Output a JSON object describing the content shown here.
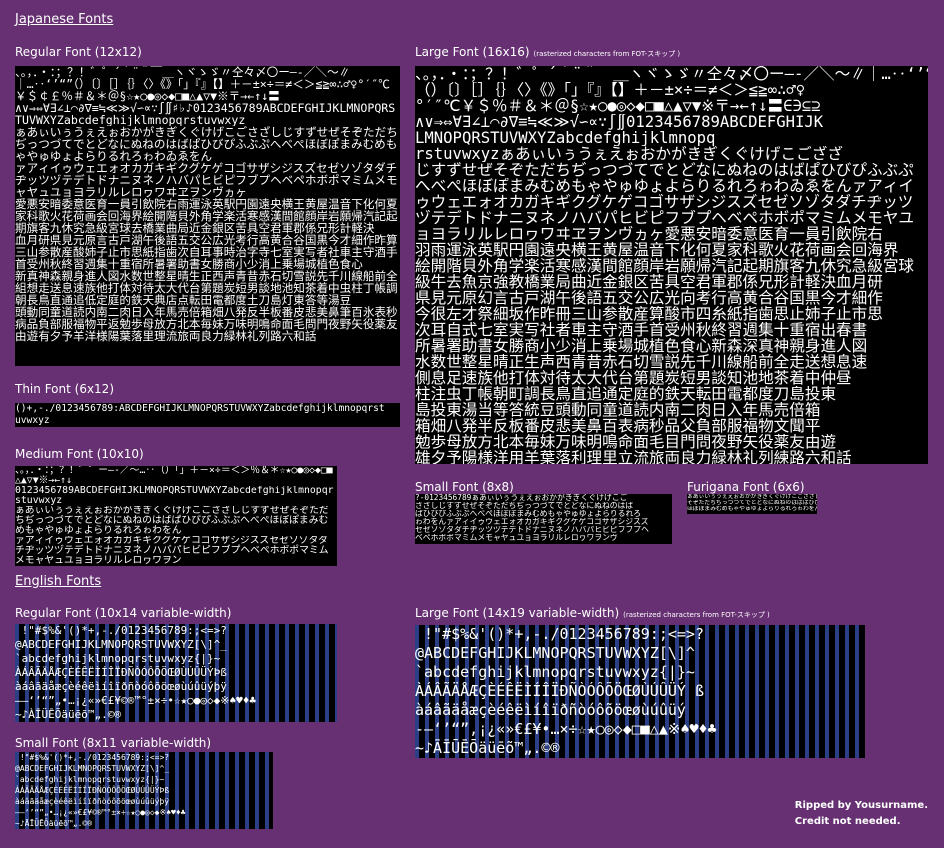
{
  "japanese": {
    "heading": "Japanese Fonts",
    "regular": {
      "label": "Regular Font (12x12)",
      "lines": [
        "、。，．・：；？！゛゜´｀¨＾￣＿ヽヾゝゞ〃仝々〆〇ー―‐／＼～∥｜…‥‘’“”（）〔〕［］｛｝〈〉《》「」『』【】＋－±×÷＝≠＜＞≦≧∞∴♂♀°′″℃￥＄￠￡％＃＆＊＠§☆★○●◎◇◆□■△▲▽▼※〒→←↑↓〓",
        "∧∨⇒⇔∀∃∠⊥⌒∂∇≡≒≪≫√∽∝∵∫∬♯♭♪0123456789ABCDEFGHIJKLMNOPQRSTUVWXYZabcdefghijklmnopqrstuvwxyz",
        "ぁあぃいぅうぇえぉおかがきぎくぐけげこごさざしじすずせぜそぞただちぢっつづてでとどなにぬねのはばぱひびぴふぶぷへべぺほぼぽまみむめもゃやゅゆょよらりるれろゎわゐゑをん",
        "ァアィイゥウェエォオカガキギクグケゲコゴサザシジスズセゼソゾタダチヂッツヅテデトドナニヌネノハバパヒビピフブプヘベペホボポマミムメモャヤュユョヨラリルレロヮワヰヱヲンヴヵヶ",
        "愛悪安暗委意医育一員引飲院右雨運泳英駅円園遠央横王黄屋温音下化何夏家科歌火花荷画会回海界絵開階貝外角学楽活寒感漢間館顔岸岩願帰汽記起期旗客九休究急級宮球去橋業曲局近金銀区苦具空君軍郡係兄形計軽決",
        "血月研県見元原言古戸湖午後語五交公広光考行高黄合谷国黒今才細作昨算三山参散産酸姉子止市思紙指歯次自耳事時治字寺七室実写者社車主守酒手首受州秋終習週集十重宿所暑署助書女勝商小少消上乗場城植色食心",
        "新真神森親身進人図水数世整星晴生正西声青昔赤石切雪説先千川線船前全組想走送息速族他打体対待太大代台第題炭短男談地池知茶着中虫柱丁帳調朝長鳥直通追低定庭的鉄天典店点転田電都度土刀島灯東答等湯豆",
        "頭動同童道読内南二肉日入年馬売倍箱畑八発反半板番皮悲美鼻筆百氷表秒病品負部服福物平返勉歩母放方北本毎妹万味明鳴命面毛問門夜野矢役薬友由遊有夕予羊洋様陽葉落里理流旅両良力緑林礼列路六和話"
      ]
    },
    "thin": {
      "label": "Thin Font (6x12)",
      "lines": [
        "()+,-./0123456789:ABCDEFGHIJKLMNOPQRSTUVWXYZabcdefghijklmnopqrst",
        "uvwxyz"
      ]
    },
    "medium": {
      "label": "Medium Font (10x10)",
      "lines": [
        "、。，．・：；？！゛゜ー―‐／～…‥（）「」＋－×÷＝＜＞％＆＊☆★○●◎◇◆□■△▲▽▼※→←↑↓",
        "0123456789ABCDEFGHIJKLMNOPQRSTUVWXYZabcdefghijklmnopqrstuvwxyz",
        "ぁあぃいぅうぇえぉおかがきぎくぐけげこごさざしじすずせぜそぞただちぢっつづてでとどなにぬねのはばぱひびぴふぶぷへべぺほぼぽまみむめもゃやゅゆょよらりるれろゎわをん",
        "ァアィイゥウェエォオカガキギクグケゲコゴサザシジスズセゼソゾタダチヂッツヅテデトドナニヌネノハバパヒビピフブプヘベペホボポマミムメモャヤュユョヨラリルレロヮワヲン"
      ]
    },
    "large": {
      "label": "Large Font (16x16)",
      "note": "(rasterized characters from FOT-スキップ )",
      "lines": [
        "、。，．・：；？！゛゜´｀¨＾￣＿ヽヾゝゞ〃仝々〆〇ー―‐／＼～∥｜…‥‘’“”",
        "（）〔〕［］｛｝〈〉《》「」『』【】＋－±×÷＝≠＜＞≦≧∞∴♂♀",
        "°′″℃￥＄％＃＆＊＠§☆★○●◎◇◆□■△▲▽▼※〒→←↑↓〓∈∋⊆⊇",
        "∧∨⇒⇔∀∃∠⊥⌒∂∇≡≒≪≫√∽∝∵∫∬0123456789ABCDEFGHIJK",
        "LMNOPQRSTUVWXYZabcdefghijklmnopq",
        "rstuvwxyzぁあぃいぅうぇえぉおかがきぎくぐけげこござざ",
        "じすずせぜそぞただちぢっつづてでとどなにぬねのはばぱひびぴふぶぷ",
        "へべぺほぼぽまみむめもゃやゅゆょよらりるれろゎわゐゑをんァアィイ",
        "ゥウェエォオカガキギクグケゲコゴサザシジスズセゼソゾタダチヂッツ",
        "ヅテデトドナニヌネノハバパヒビピフブプヘベペホボポマミムメモヤユ",
        "ョヨラリルレロヮワヰヱヲンヴヵヶ愛悪安暗委意医育一員引飲院右",
        "羽雨運泳英駅円園遠央横王黄屋温音下化何夏家科歌火花荷画会回海界",
        "絵開階貝外角学楽活寒感漢間館顔岸岩願帰汽記起期旗客九休究急級宮球",
        "級牛去魚京強教橋業局曲近金銀区苦具空君軍郡係兄形計軽決血月研",
        "県見元原幻言古戸湖午後語五交公広光向考行高黄合谷国黒今才細作",
        "今很左才祭細坂作昨冊三山参散産算酸市四糸紙指歯思止姉子止市思",
        "次耳自式七室実写社者車主守酒手首受州秋終習週集十重宿出春書",
        "所暑署助書女勝商小少消上乗場城植色食心新森深真神親身進人図",
        "水数世整星晴正生声西青昔赤石切雪説先千川線船前全走送想息速",
        "側息足速族他打体対待太大代台第題炭短男談知池地茶着中仲昼",
        "柱注虫丁帳朝町調長鳥直追通定庭的鉄天転田電都度刀島投東",
        "島投東湯当等答統豆頭動同童道読内南二肉日入年馬売倍箱",
        "箱畑八発半反板番皮悲美鼻百表病秒品父負部服福物文聞平",
        "勉歩母放方北本毎妹万味明鳴命面毛目門問夜野矢役薬友由遊",
        "雄夕予陽様洋用羊葉落利理里立流旅両良力緑林礼列練路六和話"
      ]
    },
    "small": {
      "label": "Small Font (8x8)",
      "lines": [
        "?-0123456789ぁあぃいぅうぇえぉおかがきぎくぐけげこご",
        "さざしじすずせぜそぞただちぢっつづてでとどなにぬねのはば",
        "ぱひびぴふぶぷへべぺほぼぽまみむめもゃやゅゆょよらりるれろ",
        "ゎわをんァアィイゥウェエォオカガキギクグケゲコゴサザシジスズ",
        "セゼソゾタダチヂッツヅテデトドナニヌネノハバパヒビピフブプヘ",
        "ベペホボポマミムメモャヤュユョヨラリルレロヮワヲンヴ"
      ]
    },
    "furigana": {
      "label": "Furigana Font (6x6)",
      "lines": [
        "ぁあぃいぅうぇえぉおかがきぎくぐけげこごさざしじすずせぜ",
        "そぞただちぢっつづてでとどなにぬねのはばぱひびぴふぶぷへべぺ",
        "ほぼぽまみむめもゃやゅゆょよらりるれろゎわをんァアィイゥウ"
      ]
    }
  },
  "english": {
    "heading": "English Fonts",
    "regular": {
      "label": "Regular Font (10x14 variable-width)",
      "lines": [
        " !\"#$%&'()*+,-./0123456789:;<=>?",
        "@ABCDEFGHIJKLMNOPQRSTUVWXYZ[\\]^_",
        "`abcdefghijklmnopqrstuvwxyz{|}~",
        "ÀÁÂÃÄÅÆÇÈÉÊËÌÍÎÏÐÑÒÓÔÕÖŒØÙÚÛÜÝÞß",
        "àáâãäåæçèéêëìíîïðñòóôõöœøùúûüýþÿ",
        "–—‘’“”„•…¡¿«»€£¥©®™°±×÷•☆★○●◎◇◆※♠♥♦♣",
        "~♪ÀĪÜĒÕäüēõ™„.©®"
      ]
    },
    "large": {
      "label": "Large Font (14x19 variable-width)",
      "note": "(rasterized characters from FOT-スキップ )",
      "lines": [
        " !\"#$%&'()*+,-./0123456789:;<=>?",
        "@ABCDEFGHIJKLMNOPQRSTUVWXYZ[\\]^",
        "`abcdefghijklmnopqrstuvwxyz{|}~",
        "ÀÁÂÃÄÅÆÇÈÉÊËÌÍÎÏÐÑÒÓÔÕÖŒØÙÚÛÜÝ ß",
        "àáâãäåæçèéêëìíîïðñòóôõöœøùúûüý",
        "‐—‘’“”‚¡¿«»€£¥•…×÷☆★○◎◇◆□■△▲※♠♥♦♣",
        "~♪ĀĪŪĒŌäüēõ™„.©®"
      ]
    },
    "small": {
      "label": "Small Font (8x11 variable-width)",
      "lines": [
        " !\"#$%&'()*+,-./0123456789:;<=>?",
        "@ABCDEFGHIJKLMNOPQRSTUVWXYZ[\\]^_",
        "`abcdefghijklmnopqrstuvwxyz{|}~",
        "ÀÁÂÃÄÅÆÇÈÉÊËÌÍÎÏÐÑÒÓÔÕÖŒØÙÚÛÜÝÞß",
        "àáâãäåæçèéêëìíîïðñòóôõöœøùúûüýþÿ",
        "–—‘’“”„•…¡¿«»€£¥©®™°±×÷☆★○●◎◇◆※♠♥♦♣",
        "~♪ĀĪŪĒŌäüēõ™„.©®"
      ]
    }
  },
  "credit": {
    "line1": "Ripped by Yousurname.",
    "line2": "Credit not needed."
  },
  "colors": {
    "background": "#663072",
    "sheet": "#000000",
    "stripe": "#2b3f86",
    "text": "#ffffff"
  }
}
